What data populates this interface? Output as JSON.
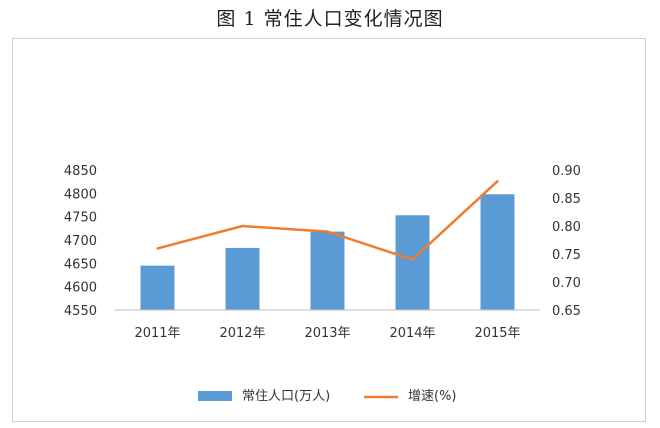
{
  "figure": {
    "title": "图 1    常住人口变化情况图"
  },
  "chart_data": {
    "type": "bar",
    "categories": [
      "2011年",
      "2012年",
      "2013年",
      "2014年",
      "2015年"
    ],
    "series": [
      {
        "name": "常住人口(万人)",
        "type": "bar",
        "axis": "left",
        "color": "#5b9bd5",
        "values": [
          4645,
          4683,
          4718,
          4753,
          4798
        ]
      },
      {
        "name": "增速(%)",
        "type": "line",
        "axis": "right",
        "color": "#ed7d31",
        "values": [
          0.76,
          0.8,
          0.79,
          0.74,
          0.88
        ]
      }
    ],
    "y_left": {
      "min": 4550,
      "max": 4850,
      "step": 50,
      "ticks": [
        "4550",
        "4600",
        "4650",
        "4700",
        "4750",
        "4800",
        "4850"
      ]
    },
    "y_right": {
      "min": 0.65,
      "max": 0.9,
      "step": 0.05,
      "ticks": [
        "0.65",
        "0.70",
        "0.75",
        "0.80",
        "0.85",
        "0.90"
      ]
    },
    "grid": false,
    "legend": {
      "position": "bottom",
      "items": [
        "常住人口(万人)",
        "增速(%)"
      ]
    }
  }
}
